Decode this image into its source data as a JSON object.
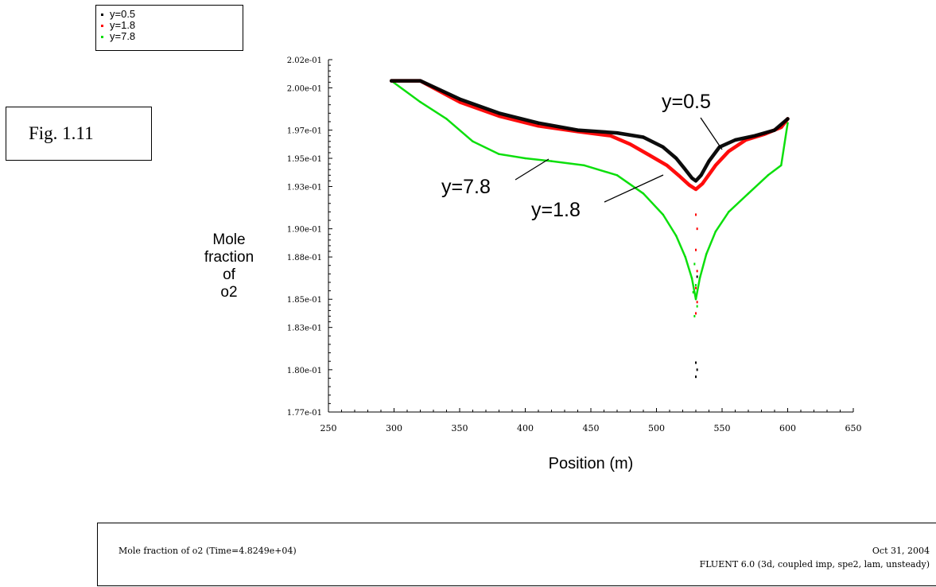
{
  "legend": [
    {
      "label": "y=0.5",
      "color": "#000000"
    },
    {
      "label": "y=1.8",
      "color": "#ff0000"
    },
    {
      "label": "y=7.8",
      "color": "#00dd00"
    }
  ],
  "figure_label": "Fig. 1.11",
  "chart_data": {
    "type": "scatter",
    "title": "",
    "xlabel": "Position (m)",
    "ylabel": [
      "Mole",
      "fraction",
      "of",
      "o2"
    ],
    "xlim": [
      250,
      650
    ],
    "ylim": [
      0.177,
      0.202
    ],
    "x_ticks": [
      250,
      300,
      350,
      400,
      450,
      500,
      550,
      600,
      650
    ],
    "y_ticks": [
      0.177,
      0.18,
      0.183,
      0.185,
      0.188,
      0.19,
      0.193,
      0.195,
      0.197,
      0.2,
      0.202
    ],
    "y_tick_labels": [
      "1.77e-01",
      "1.80e-01",
      "1.83e-01",
      "1.85e-01",
      "1.88e-01",
      "1.90e-01",
      "1.93e-01",
      "1.95e-01",
      "1.97e-01",
      "2.00e-01",
      "2.02e-01"
    ],
    "series": [
      {
        "name": "y=0.5",
        "color": "#000000",
        "points": [
          [
            298,
            0.2005
          ],
          [
            320,
            0.2005
          ],
          [
            350,
            0.1992
          ],
          [
            380,
            0.1982
          ],
          [
            410,
            0.1975
          ],
          [
            440,
            0.197
          ],
          [
            470,
            0.1968
          ],
          [
            490,
            0.1965
          ],
          [
            505,
            0.1958
          ],
          [
            515,
            0.195
          ],
          [
            522,
            0.1942
          ],
          [
            527,
            0.1936
          ],
          [
            530,
            0.1934
          ],
          [
            534,
            0.1938
          ],
          [
            540,
            0.1948
          ],
          [
            548,
            0.1958
          ],
          [
            560,
            0.1963
          ],
          [
            575,
            0.1966
          ],
          [
            590,
            0.197
          ],
          [
            600,
            0.1978
          ]
        ]
      },
      {
        "name": "y=1.8",
        "color": "#ff0000",
        "points": [
          [
            298,
            0.2005
          ],
          [
            320,
            0.2005
          ],
          [
            350,
            0.199
          ],
          [
            380,
            0.198
          ],
          [
            410,
            0.1973
          ],
          [
            440,
            0.1969
          ],
          [
            465,
            0.1966
          ],
          [
            480,
            0.196
          ],
          [
            495,
            0.1952
          ],
          [
            508,
            0.1945
          ],
          [
            518,
            0.1937
          ],
          [
            525,
            0.1931
          ],
          [
            530,
            0.1928
          ],
          [
            535,
            0.1932
          ],
          [
            545,
            0.1945
          ],
          [
            555,
            0.1955
          ],
          [
            568,
            0.1963
          ],
          [
            582,
            0.1967
          ],
          [
            595,
            0.1972
          ],
          [
            600,
            0.1978
          ]
        ]
      },
      {
        "name": "y=7.8",
        "color": "#00dd00",
        "points": [
          [
            298,
            0.2005
          ],
          [
            320,
            0.199
          ],
          [
            340,
            0.1978
          ],
          [
            360,
            0.1962
          ],
          [
            380,
            0.1953
          ],
          [
            400,
            0.195
          ],
          [
            420,
            0.1948
          ],
          [
            445,
            0.1945
          ],
          [
            470,
            0.1938
          ],
          [
            490,
            0.1925
          ],
          [
            505,
            0.191
          ],
          [
            515,
            0.1895
          ],
          [
            522,
            0.188
          ],
          [
            527,
            0.1865
          ],
          [
            530,
            0.185
          ],
          [
            533,
            0.1865
          ],
          [
            538,
            0.1882
          ],
          [
            545,
            0.1898
          ],
          [
            555,
            0.1912
          ],
          [
            570,
            0.1925
          ],
          [
            585,
            0.1938
          ],
          [
            595,
            0.1945
          ],
          [
            600,
            0.1975
          ]
        ]
      }
    ],
    "scatter_points": [
      {
        "color": "#ff0000",
        "points": [
          [
            530,
            0.191
          ],
          [
            531,
            0.19
          ],
          [
            530,
            0.1885
          ],
          [
            531,
            0.187
          ],
          [
            530,
            0.1858
          ],
          [
            531,
            0.1848
          ],
          [
            530,
            0.184
          ]
        ]
      },
      {
        "color": "#000000",
        "points": [
          [
            530,
            0.1805
          ],
          [
            531,
            0.18
          ],
          [
            530,
            0.1795
          ],
          [
            531,
            0.1866
          ]
        ]
      },
      {
        "color": "#00dd00",
        "points": [
          [
            529,
            0.1875
          ],
          [
            530,
            0.186
          ],
          [
            528,
            0.1855
          ],
          [
            531,
            0.1845
          ],
          [
            529,
            0.1838
          ]
        ]
      }
    ],
    "annotations": [
      {
        "text": "y=0.5",
        "target": [
          537,
          0.1958
        ]
      },
      {
        "text": "y=7.8",
        "target": [
          410,
          0.1953
        ]
      },
      {
        "text": "y=1.8",
        "target": [
          505,
          0.1948
        ]
      }
    ]
  },
  "footer": {
    "left": "Mole fraction of o2  (Time=4.8249e+04)",
    "right_line1": "Oct 31, 2004",
    "right_line2": "FLUENT 6.0 (3d, coupled imp, spe2, lam, unsteady)"
  }
}
